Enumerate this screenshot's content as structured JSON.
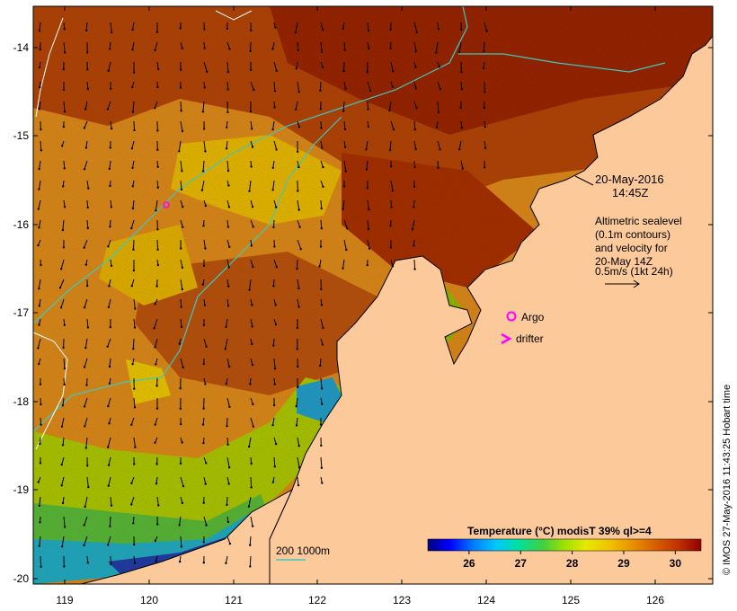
{
  "map": {
    "lon_ticks": [
      "119",
      "120",
      "121",
      "122",
      "123",
      "124",
      "125",
      "126"
    ],
    "lat_ticks": [
      "-14",
      "-15",
      "-16",
      "-17",
      "-18",
      "-19",
      "-20"
    ],
    "lon_range": [
      118.65,
      126.7
    ],
    "lat_range": [
      -13.7,
      -20.1
    ],
    "land_color": "#fbc99a",
    "coast_color": "#000000",
    "contour_color": "#40c8c0"
  },
  "annotations": {
    "date": "20-May-2016",
    "time": "14:45Z",
    "altimetry_lines": [
      "Altimetric sealevel",
      "(0.1m contours)",
      "and velocity for",
      "20-May 14Z",
      "0.5m/s (1kt 24h)"
    ],
    "argo_label": "Argo",
    "drifter_label": "drifter",
    "marker_color": "#ff00ff",
    "depth_label": "200  1000m"
  },
  "colorbar": {
    "title": "Temperature (°C) modisT 39% ql>=4",
    "ticks": [
      "26",
      "27",
      "28",
      "29",
      "30"
    ],
    "range": [
      25.2,
      30.5
    ],
    "colors": [
      "#000080",
      "#0000ff",
      "#0080ff",
      "#00c8ff",
      "#00e0a0",
      "#40d040",
      "#a0e000",
      "#e8e800",
      "#f0c000",
      "#e89000",
      "#d86000",
      "#c03000",
      "#900000"
    ]
  },
  "copyright": "© IMOS 27-May-2016 11:43:25 Hobart time"
}
